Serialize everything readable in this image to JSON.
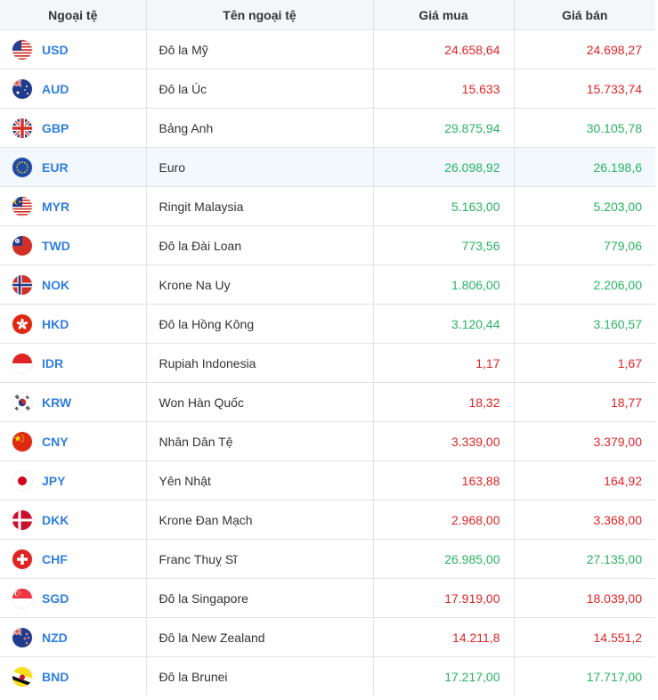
{
  "header": {
    "col_code": "Ngoại tệ",
    "col_name": "Tên ngoại tệ",
    "col_buy": "Giá mua",
    "col_sell": "Giá bán"
  },
  "rows": [
    {
      "code": "USD",
      "name": "Đô la Mỹ",
      "buy": "24.658,64",
      "sell": "24.698,27",
      "buy_color": "red",
      "sell_color": "red",
      "flag_icon": "us-flag-icon"
    },
    {
      "code": "AUD",
      "name": "Đô la Úc",
      "buy": "15.633",
      "sell": "15.733,74",
      "buy_color": "red",
      "sell_color": "red",
      "flag_icon": "au-flag-icon"
    },
    {
      "code": "GBP",
      "name": "Bảng Anh",
      "buy": "29.875,94",
      "sell": "30.105,78",
      "buy_color": "green",
      "sell_color": "green",
      "flag_icon": "gb-flag-icon"
    },
    {
      "code": "EUR",
      "name": "Euro",
      "buy": "26.098,92",
      "sell": "26.198,6",
      "buy_color": "green",
      "sell_color": "green",
      "flag_icon": "eu-flag-icon",
      "highlighted": true
    },
    {
      "code": "MYR",
      "name": "Ringit Malaysia",
      "buy": "5.163,00",
      "sell": "5.203,00",
      "buy_color": "green",
      "sell_color": "green",
      "flag_icon": "my-flag-icon"
    },
    {
      "code": "TWD",
      "name": "Đô la Đài Loan",
      "buy": "773,56",
      "sell": "779,06",
      "buy_color": "green",
      "sell_color": "green",
      "flag_icon": "tw-flag-icon"
    },
    {
      "code": "NOK",
      "name": "Krone Na Uy",
      "buy": "1.806,00",
      "sell": "2.206,00",
      "buy_color": "green",
      "sell_color": "green",
      "flag_icon": "no-flag-icon"
    },
    {
      "code": "HKD",
      "name": "Đô la Hồng Kông",
      "buy": "3.120,44",
      "sell": "3.160,57",
      "buy_color": "green",
      "sell_color": "green",
      "flag_icon": "hk-flag-icon"
    },
    {
      "code": "IDR",
      "name": "Rupiah Indonesia",
      "buy": "1,17",
      "sell": "1,67",
      "buy_color": "red",
      "sell_color": "red",
      "flag_icon": "id-flag-icon"
    },
    {
      "code": "KRW",
      "name": "Won Hàn Quốc",
      "buy": "18,32",
      "sell": "18,77",
      "buy_color": "red",
      "sell_color": "red",
      "flag_icon": "kr-flag-icon"
    },
    {
      "code": "CNY",
      "name": "Nhân Dân Tệ",
      "buy": "3.339,00",
      "sell": "3.379,00",
      "buy_color": "red",
      "sell_color": "red",
      "flag_icon": "cn-flag-icon"
    },
    {
      "code": "JPY",
      "name": "Yên Nhật",
      "buy": "163,88",
      "sell": "164,92",
      "buy_color": "red",
      "sell_color": "red",
      "flag_icon": "jp-flag-icon"
    },
    {
      "code": "DKK",
      "name": "Krone Đan Mạch",
      "buy": "2.968,00",
      "sell": "3.368,00",
      "buy_color": "red",
      "sell_color": "red",
      "flag_icon": "dk-flag-icon"
    },
    {
      "code": "CHF",
      "name": "Franc Thuỵ Sĩ",
      "buy": "26.985,00",
      "sell": "27.135,00",
      "buy_color": "green",
      "sell_color": "green",
      "flag_icon": "ch-flag-icon"
    },
    {
      "code": "SGD",
      "name": "Đô la Singapore",
      "buy": "17.919,00",
      "sell": "18.039,00",
      "buy_color": "red",
      "sell_color": "red",
      "flag_icon": "sg-flag-icon"
    },
    {
      "code": "NZD",
      "name": "Đô la New Zealand",
      "buy": "14.211,8",
      "sell": "14.551,2",
      "buy_color": "red",
      "sell_color": "red",
      "flag_icon": "nz-flag-icon"
    },
    {
      "code": "BND",
      "name": "Đô la Brunei",
      "buy": "17.217,00",
      "sell": "17.717,00",
      "buy_color": "green",
      "sell_color": "green",
      "flag_icon": "bn-flag-icon"
    }
  ],
  "colors": {
    "red": "#e02424",
    "green": "#28b463",
    "code_blue": "#2f7fe0",
    "header_bg": "#f4f6f8",
    "highlight_bg": "#f2f8fd"
  }
}
